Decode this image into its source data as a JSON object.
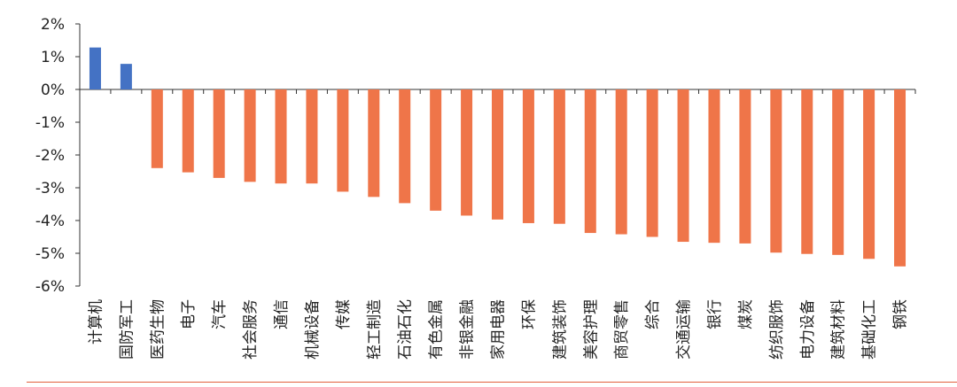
{
  "chart_data": {
    "type": "bar",
    "title": "",
    "xlabel": "",
    "ylabel": "",
    "ylim": [
      -6,
      2
    ],
    "yticks": [
      "2%",
      "1%",
      "0%",
      "-1%",
      "-2%",
      "-3%",
      "-4%",
      "-5%",
      "-6%"
    ],
    "categories": [
      "计算机",
      "国防军工",
      "医药生物",
      "电子",
      "汽车",
      "社会服务",
      "通信",
      "机械设备",
      "传媒",
      "轻工制造",
      "石油石化",
      "有色金属",
      "非银金融",
      "家用电器",
      "环保",
      "建筑装饰",
      "美容护理",
      "商贸零售",
      "综合",
      "交通运输",
      "银行",
      "煤炭",
      "纺织服饰",
      "电力设备",
      "建筑材料",
      "基础化工",
      "钢铁"
    ],
    "values": [
      1.28,
      0.78,
      -2.4,
      -2.53,
      -2.7,
      -2.82,
      -2.87,
      -2.87,
      -3.12,
      -3.28,
      -3.47,
      -3.7,
      -3.85,
      -3.97,
      -4.08,
      -4.1,
      -4.38,
      -4.42,
      -4.5,
      -4.65,
      -4.68,
      -4.7,
      -4.98,
      -5.02,
      -5.05,
      -5.17,
      -5.4
    ],
    "colors": {
      "positive": "#4472c4",
      "negative": "#ef7549",
      "axis": "#333333",
      "text": "#222222",
      "rule": "#e2603d"
    },
    "grid": false,
    "legend": "none"
  }
}
